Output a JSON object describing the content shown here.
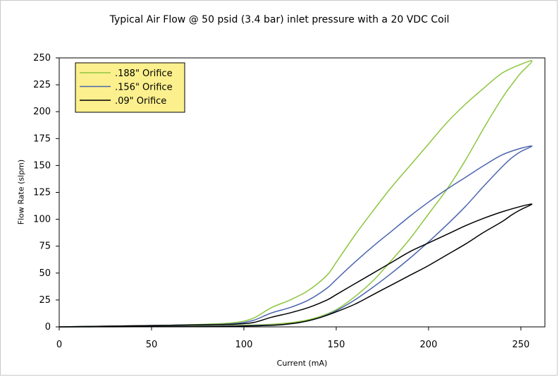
{
  "chart_data": {
    "type": "line",
    "title": "Typical Air Flow @ 50 psid (3.4 bar) inlet pressure  with a 20 VDC Coil",
    "xlabel": "Current (mA)",
    "ylabel": "Flow Rate (slpm)",
    "xlim": [
      0,
      263
    ],
    "ylim": [
      0,
      250
    ],
    "x_ticks": [
      "0",
      "50",
      "100",
      "150",
      "200",
      "250"
    ],
    "y_ticks": [
      "0",
      "25",
      "50",
      "75",
      "100",
      "125",
      "150",
      "175",
      "200",
      "225",
      "250"
    ],
    "grid": false,
    "legend_position": "top-left",
    "series": [
      {
        "name": ".188\" Orifice",
        "color": "#8dc63f",
        "x": [
          0,
          20,
          40,
          60,
          80,
          95,
          105,
          115,
          125,
          135,
          145,
          150,
          160,
          170,
          180,
          190,
          200,
          210,
          220,
          230,
          240,
          250,
          256,
          250,
          245,
          240,
          230,
          220,
          210,
          200,
          190,
          180,
          170,
          160,
          150,
          140,
          130,
          120,
          110,
          100,
          90,
          75,
          60,
          40,
          20,
          0
        ],
        "values": [
          0,
          0.5,
          1,
          1.5,
          2.5,
          4,
          8,
          18,
          25,
          34,
          48,
          60,
          85,
          108,
          130,
          150,
          170,
          190,
          207,
          222,
          236,
          244,
          247,
          236,
          225,
          213,
          185,
          155,
          128,
          105,
          82,
          62,
          43,
          28,
          16,
          9,
          5,
          3,
          2,
          1.5,
          1,
          0.7,
          0.5,
          0.3,
          0.1,
          0
        ]
      },
      {
        "name": ".156\" Orifice",
        "color": "#4a64ad",
        "x": [
          0,
          20,
          40,
          60,
          80,
          95,
          105,
          115,
          125,
          135,
          145,
          150,
          160,
          170,
          180,
          190,
          200,
          210,
          220,
          230,
          240,
          250,
          256,
          250,
          245,
          240,
          230,
          220,
          210,
          200,
          190,
          180,
          170,
          160,
          150,
          140,
          130,
          120,
          110,
          100,
          90,
          75,
          60,
          40,
          20,
          0
        ],
        "values": [
          0,
          0.5,
          1,
          1.5,
          2,
          3,
          6,
          13,
          18,
          25,
          36,
          44,
          60,
          75,
          89,
          103,
          116,
          128,
          139,
          150,
          160,
          166,
          168,
          163,
          157,
          149,
          131,
          112,
          95,
          79,
          64,
          50,
          37,
          25,
          15,
          8,
          4,
          2,
          1.5,
          1,
          0.7,
          0.5,
          0.3,
          0.2,
          0.1,
          0
        ]
      },
      {
        "name": ".09\" Orifice",
        "color": "#000000",
        "x": [
          0,
          20,
          40,
          60,
          80,
          95,
          105,
          115,
          125,
          135,
          145,
          150,
          160,
          170,
          180,
          190,
          200,
          210,
          220,
          230,
          240,
          250,
          256,
          250,
          245,
          240,
          230,
          220,
          210,
          200,
          190,
          180,
          170,
          160,
          150,
          140,
          130,
          120,
          110,
          100,
          90,
          75,
          60,
          40,
          20,
          0
        ],
        "values": [
          0,
          0.5,
          1,
          1.5,
          2,
          2.5,
          4,
          9,
          13,
          18,
          25,
          30,
          40,
          50,
          60,
          70,
          78,
          86,
          94,
          101,
          107,
          112,
          114,
          109,
          104,
          98,
          88,
          77,
          67,
          57,
          48,
          39,
          30,
          21,
          14,
          8,
          4,
          2,
          1.2,
          0.8,
          0.5,
          0.3,
          0.2,
          0.1,
          0.05,
          0
        ]
      }
    ]
  },
  "colors": {
    "axis": "#000000",
    "legend_background": "#fcf08e",
    "frame_border": "#c9c9c9"
  }
}
